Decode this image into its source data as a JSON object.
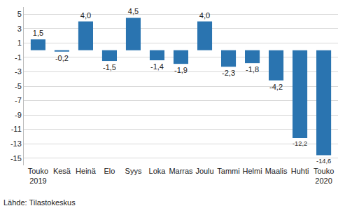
{
  "chart_data": {
    "type": "bar",
    "categories": [
      "Touko 2019",
      "Kesä",
      "Heinä",
      "Elo",
      "Syys",
      "Loka",
      "Marras",
      "Joulu",
      "Tammi",
      "Helmi",
      "Maalis",
      "Huhti",
      "Touko 2020"
    ],
    "values": [
      1.5,
      -0.2,
      4.0,
      -1.5,
      4.5,
      -1.4,
      -1.9,
      4.0,
      -2.3,
      -1.8,
      -4.2,
      -12.2,
      -14.6
    ],
    "value_labels": [
      "1,5",
      "-0,2",
      "4,0",
      "-1,5",
      "4,5",
      "-1,4",
      "-1,9",
      "4,0",
      "-2,3",
      "-1,8",
      "-4,2",
      "-12,2",
      "-14,6"
    ],
    "data_labels": true,
    "color": "#2a74b0",
    "ylim": [
      -16,
      6
    ],
    "yticks": [
      5,
      3,
      1,
      -1,
      -3,
      -5,
      -7,
      -9,
      -11,
      -13,
      -15
    ],
    "grid": true,
    "source": "Lähde: Tilastokeskus"
  }
}
